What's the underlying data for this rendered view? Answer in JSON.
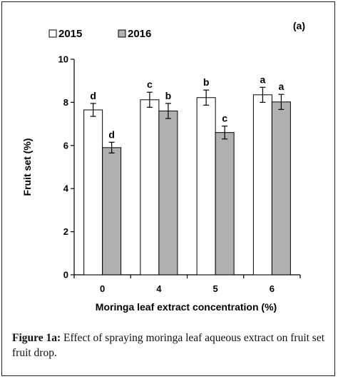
{
  "chart_data": {
    "type": "bar",
    "panel_label": "(a)",
    "categories": [
      "0",
      "4",
      "5",
      "6"
    ],
    "series": [
      {
        "name": "2015",
        "color": "#ffffff",
        "values": [
          7.65,
          8.12,
          8.22,
          8.35
        ],
        "errors": [
          0.3,
          0.35,
          0.35,
          0.35
        ],
        "letters": [
          "d",
          "c",
          "b",
          "a"
        ]
      },
      {
        "name": "2016",
        "color": "#b0b0b0",
        "values": [
          5.9,
          7.6,
          6.6,
          8.02
        ],
        "errors": [
          0.25,
          0.35,
          0.3,
          0.35
        ],
        "letters": [
          "d",
          "b",
          "c",
          "a"
        ]
      }
    ],
    "xlabel": "Moringa leaf extract concentration (%)",
    "ylabel": "Fruit set (%)",
    "ylim": [
      0,
      10
    ],
    "yticks": [
      "0",
      "2",
      "4",
      "6",
      "8",
      "10"
    ],
    "legend_position": "top-left",
    "grid": false
  },
  "caption": {
    "label": "Figure 1a:",
    "text": " Effect of spraying moringa leaf aqueous extract on fruit set fruit drop."
  }
}
